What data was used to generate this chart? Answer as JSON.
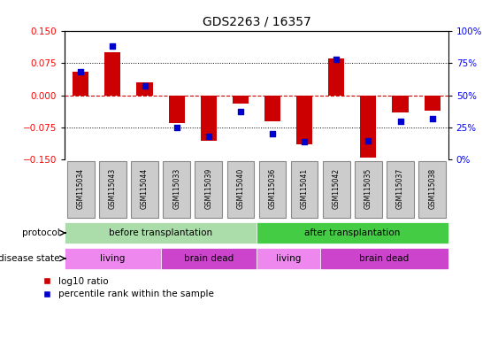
{
  "title": "GDS2263 / 16357",
  "samples": [
    "GSM115034",
    "GSM115043",
    "GSM115044",
    "GSM115033",
    "GSM115039",
    "GSM115040",
    "GSM115036",
    "GSM115041",
    "GSM115042",
    "GSM115035",
    "GSM115037",
    "GSM115038"
  ],
  "log10_ratio": [
    0.055,
    0.1,
    0.03,
    -0.065,
    -0.105,
    -0.02,
    -0.06,
    -0.115,
    0.085,
    -0.145,
    -0.04,
    -0.035
  ],
  "percentile_rank": [
    68,
    88,
    57,
    25,
    18,
    37,
    20,
    14,
    78,
    15,
    30,
    32
  ],
  "ylim": [
    -0.15,
    0.15
  ],
  "yticks": [
    -0.15,
    -0.075,
    0,
    0.075,
    0.15
  ],
  "y2ticks": [
    0,
    25,
    50,
    75,
    100
  ],
  "y2labels": [
    "0%",
    "25%",
    "50%",
    "75%",
    "100%"
  ],
  "bar_color": "#cc0000",
  "dot_color": "#0000cc",
  "hline_color": "#cc0000",
  "protocol_groups": [
    {
      "label": "before transplantation",
      "start": 0,
      "end": 6,
      "color": "#aaddaa"
    },
    {
      "label": "after transplantation",
      "start": 6,
      "end": 12,
      "color": "#44cc44"
    }
  ],
  "disease_groups": [
    {
      "label": "living",
      "start": 0,
      "end": 3,
      "color": "#ee88ee"
    },
    {
      "label": "brain dead",
      "start": 3,
      "end": 6,
      "color": "#cc44cc"
    },
    {
      "label": "living",
      "start": 6,
      "end": 8,
      "color": "#ee88ee"
    },
    {
      "label": "brain dead",
      "start": 8,
      "end": 12,
      "color": "#cc44cc"
    }
  ],
  "sample_box_color": "#cccccc",
  "legend_bar_label": "log10 ratio",
  "legend_dot_label": "percentile rank within the sample"
}
